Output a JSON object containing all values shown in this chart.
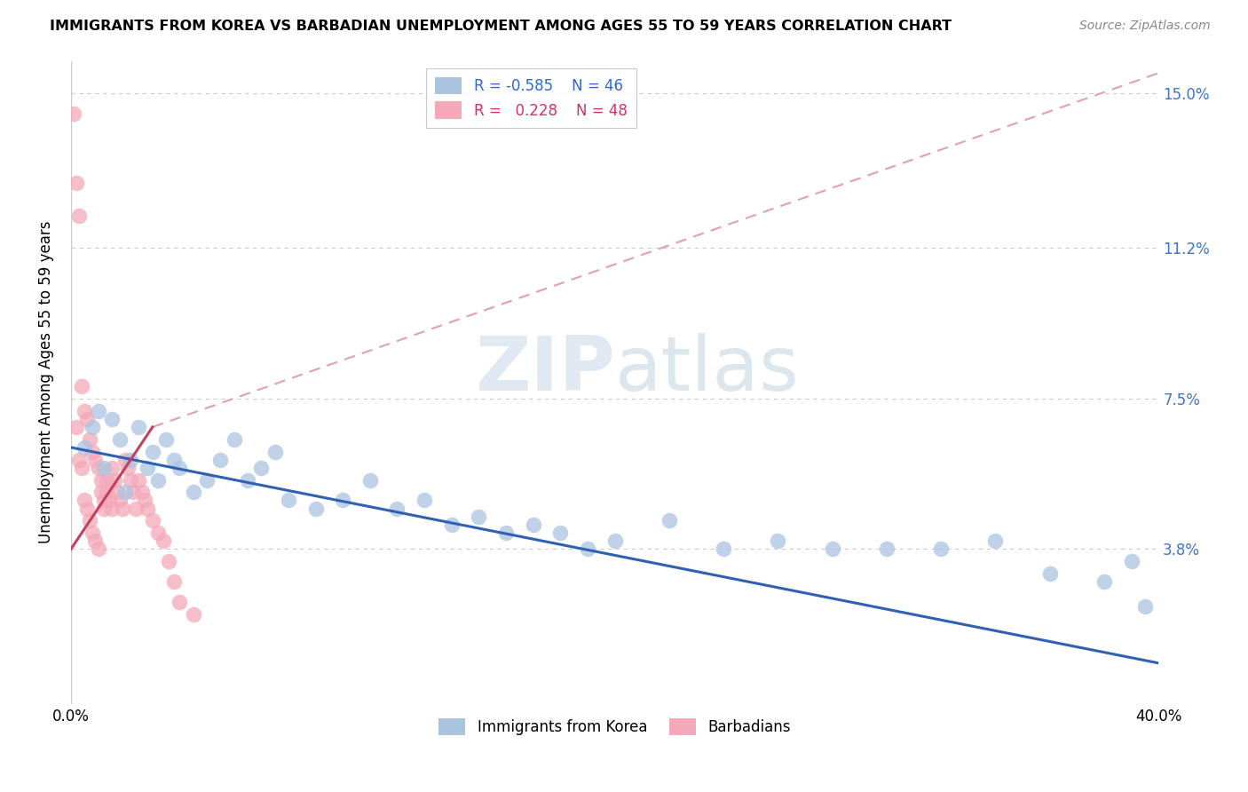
{
  "title": "IMMIGRANTS FROM KOREA VS BARBADIAN UNEMPLOYMENT AMONG AGES 55 TO 59 YEARS CORRELATION CHART",
  "source": "Source: ZipAtlas.com",
  "ylabel": "Unemployment Among Ages 55 to 59 years",
  "xlim": [
    0.0,
    0.4
  ],
  "ylim": [
    0.0,
    0.158
  ],
  "legend_blue_r": "-0.585",
  "legend_blue_n": "46",
  "legend_pink_r": "0.228",
  "legend_pink_n": "48",
  "color_blue": "#aac4e0",
  "color_pink": "#f4a8b8",
  "color_blue_line": "#3060b0",
  "color_pink_line": "#c04060",
  "color_pink_dashed": "#e0a0b0",
  "color_right_labels": "#4472c4",
  "korea_x": [
    0.005,
    0.008,
    0.01,
    0.012,
    0.015,
    0.018,
    0.02,
    0.022,
    0.025,
    0.028,
    0.03,
    0.032,
    0.035,
    0.038,
    0.04,
    0.045,
    0.05,
    0.055,
    0.06,
    0.065,
    0.07,
    0.075,
    0.08,
    0.09,
    0.1,
    0.11,
    0.12,
    0.13,
    0.14,
    0.15,
    0.16,
    0.17,
    0.18,
    0.19,
    0.2,
    0.22,
    0.24,
    0.26,
    0.28,
    0.3,
    0.32,
    0.34,
    0.36,
    0.38,
    0.39,
    0.395
  ],
  "korea_y": [
    0.063,
    0.068,
    0.072,
    0.058,
    0.07,
    0.065,
    0.052,
    0.06,
    0.068,
    0.058,
    0.062,
    0.055,
    0.065,
    0.06,
    0.058,
    0.052,
    0.055,
    0.06,
    0.065,
    0.055,
    0.058,
    0.062,
    0.05,
    0.048,
    0.05,
    0.055,
    0.048,
    0.05,
    0.044,
    0.046,
    0.042,
    0.044,
    0.042,
    0.038,
    0.04,
    0.045,
    0.038,
    0.04,
    0.038,
    0.038,
    0.038,
    0.04,
    0.032,
    0.03,
    0.035,
    0.024
  ],
  "barbados_x": [
    0.001,
    0.002,
    0.002,
    0.003,
    0.003,
    0.004,
    0.004,
    0.005,
    0.005,
    0.006,
    0.006,
    0.007,
    0.007,
    0.008,
    0.008,
    0.009,
    0.009,
    0.01,
    0.01,
    0.011,
    0.011,
    0.012,
    0.012,
    0.013,
    0.013,
    0.014,
    0.015,
    0.015,
    0.016,
    0.017,
    0.018,
    0.019,
    0.02,
    0.021,
    0.022,
    0.023,
    0.024,
    0.025,
    0.026,
    0.027,
    0.028,
    0.03,
    0.032,
    0.034,
    0.036,
    0.038,
    0.04,
    0.045
  ],
  "barbados_y": [
    0.145,
    0.128,
    0.068,
    0.12,
    0.06,
    0.078,
    0.058,
    0.072,
    0.05,
    0.07,
    0.048,
    0.065,
    0.045,
    0.062,
    0.042,
    0.06,
    0.04,
    0.058,
    0.038,
    0.055,
    0.052,
    0.05,
    0.048,
    0.055,
    0.052,
    0.05,
    0.058,
    0.048,
    0.055,
    0.052,
    0.05,
    0.048,
    0.06,
    0.058,
    0.055,
    0.052,
    0.048,
    0.055,
    0.052,
    0.05,
    0.048,
    0.045,
    0.042,
    0.04,
    0.035,
    0.03,
    0.025,
    0.022
  ],
  "blue_line_x0": 0.0,
  "blue_line_y0": 0.063,
  "blue_line_x1": 0.4,
  "blue_line_y1": 0.01,
  "pink_line_solid_x0": 0.0,
  "pink_line_solid_y0": 0.038,
  "pink_line_solid_x1": 0.03,
  "pink_line_solid_y1": 0.068,
  "pink_line_dashed_x0": 0.03,
  "pink_line_dashed_y0": 0.068,
  "pink_line_dashed_x1": 0.4,
  "pink_line_dashed_y1": 0.155
}
